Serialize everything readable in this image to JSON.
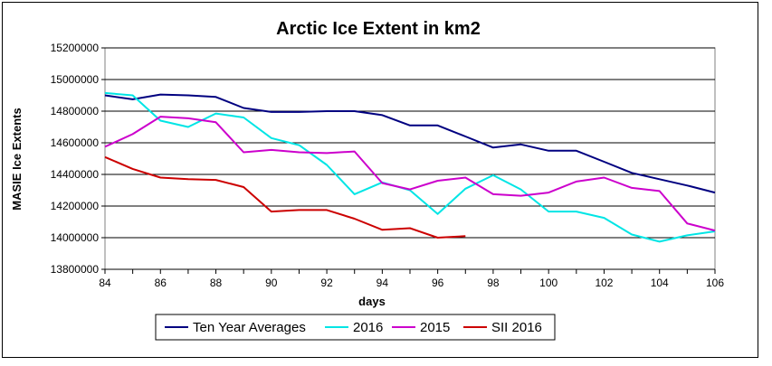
{
  "chart_data": {
    "type": "line",
    "title": "Arctic Ice Extent in km2",
    "xlabel": "days",
    "ylabel": "MASIE Ice Extents",
    "xlim": [
      84,
      106
    ],
    "ylim": [
      13800000,
      15200000
    ],
    "x_ticks": [
      "84",
      "86",
      "88",
      "90",
      "92",
      "94",
      "96",
      "98",
      "100",
      "102",
      "104",
      "106"
    ],
    "y_ticks": [
      "13800000",
      "14000000",
      "14200000",
      "14400000",
      "14600000",
      "14800000",
      "15000000",
      "15200000"
    ],
    "grid": "horizontal",
    "legend_position": "bottom",
    "series": [
      {
        "name": "Ten Year Averages",
        "color": "#000080",
        "x": [
          84,
          85,
          86,
          87,
          88,
          89,
          90,
          91,
          92,
          93,
          94,
          95,
          96,
          97,
          98,
          99,
          100,
          101,
          102,
          103,
          104,
          105,
          106
        ],
        "values": [
          14900000,
          14875000,
          14905000,
          14900000,
          14890000,
          14820000,
          14795000,
          14795000,
          14800000,
          14800000,
          14775000,
          14710000,
          14710000,
          14640000,
          14570000,
          14590000,
          14550000,
          14550000,
          14480000,
          14410000,
          14370000,
          14330000,
          14285000
        ]
      },
      {
        "name": "2016",
        "color": "#00E5E5",
        "x": [
          84,
          85,
          86,
          87,
          88,
          89,
          90,
          91,
          92,
          93,
          94,
          95,
          96,
          97,
          98,
          99,
          100,
          101,
          102,
          103,
          104,
          105,
          106
        ],
        "values": [
          14915000,
          14900000,
          14740000,
          14700000,
          14785000,
          14760000,
          14630000,
          14585000,
          14460000,
          14275000,
          14350000,
          14300000,
          14150000,
          14310000,
          14395000,
          14305000,
          14165000,
          14165000,
          14125000,
          14020000,
          13975000,
          14015000,
          14040000
        ]
      },
      {
        "name": "2015",
        "color": "#CC00CC",
        "x": [
          84,
          85,
          86,
          87,
          88,
          89,
          90,
          91,
          92,
          93,
          94,
          95,
          96,
          97,
          98,
          99,
          100,
          101,
          102,
          103,
          104,
          105,
          106
        ],
        "values": [
          14575000,
          14655000,
          14765000,
          14755000,
          14730000,
          14540000,
          14555000,
          14540000,
          14535000,
          14545000,
          14345000,
          14305000,
          14360000,
          14380000,
          14275000,
          14265000,
          14285000,
          14355000,
          14380000,
          14315000,
          14295000,
          14090000,
          14045000
        ]
      },
      {
        "name": "SII 2016",
        "color": "#CC0000",
        "x": [
          84,
          85,
          86,
          87,
          88,
          89,
          90,
          91,
          92,
          93,
          94,
          95,
          96,
          97
        ],
        "values": [
          14510000,
          14435000,
          14380000,
          14370000,
          14365000,
          14320000,
          14165000,
          14175000,
          14175000,
          14120000,
          14050000,
          14060000,
          14000000,
          14010000
        ]
      }
    ]
  }
}
